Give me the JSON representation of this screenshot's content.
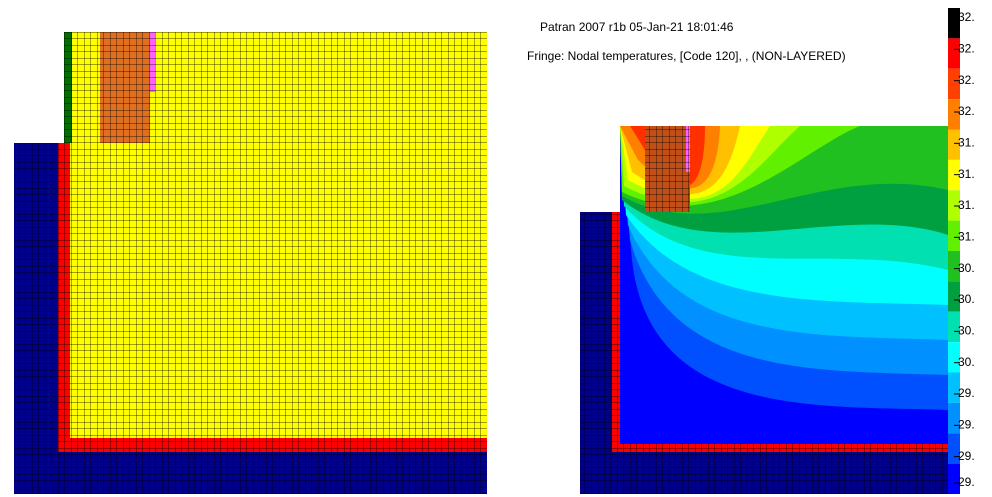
{
  "header": {
    "title": "Patran 2007 r1b 05-Jan-21 18:01:46",
    "subtitle": "Fringe: Nodal temperatures, [Code  120], , (NON-LAYERED)"
  },
  "legend": {
    "labels": [
      "32.",
      "32.",
      "32.",
      "32.",
      "31.",
      "31.",
      "31.",
      "31.",
      "30.",
      "30.",
      "30.",
      "30.",
      "29.",
      "29.",
      "29.",
      "29."
    ]
  }
}
